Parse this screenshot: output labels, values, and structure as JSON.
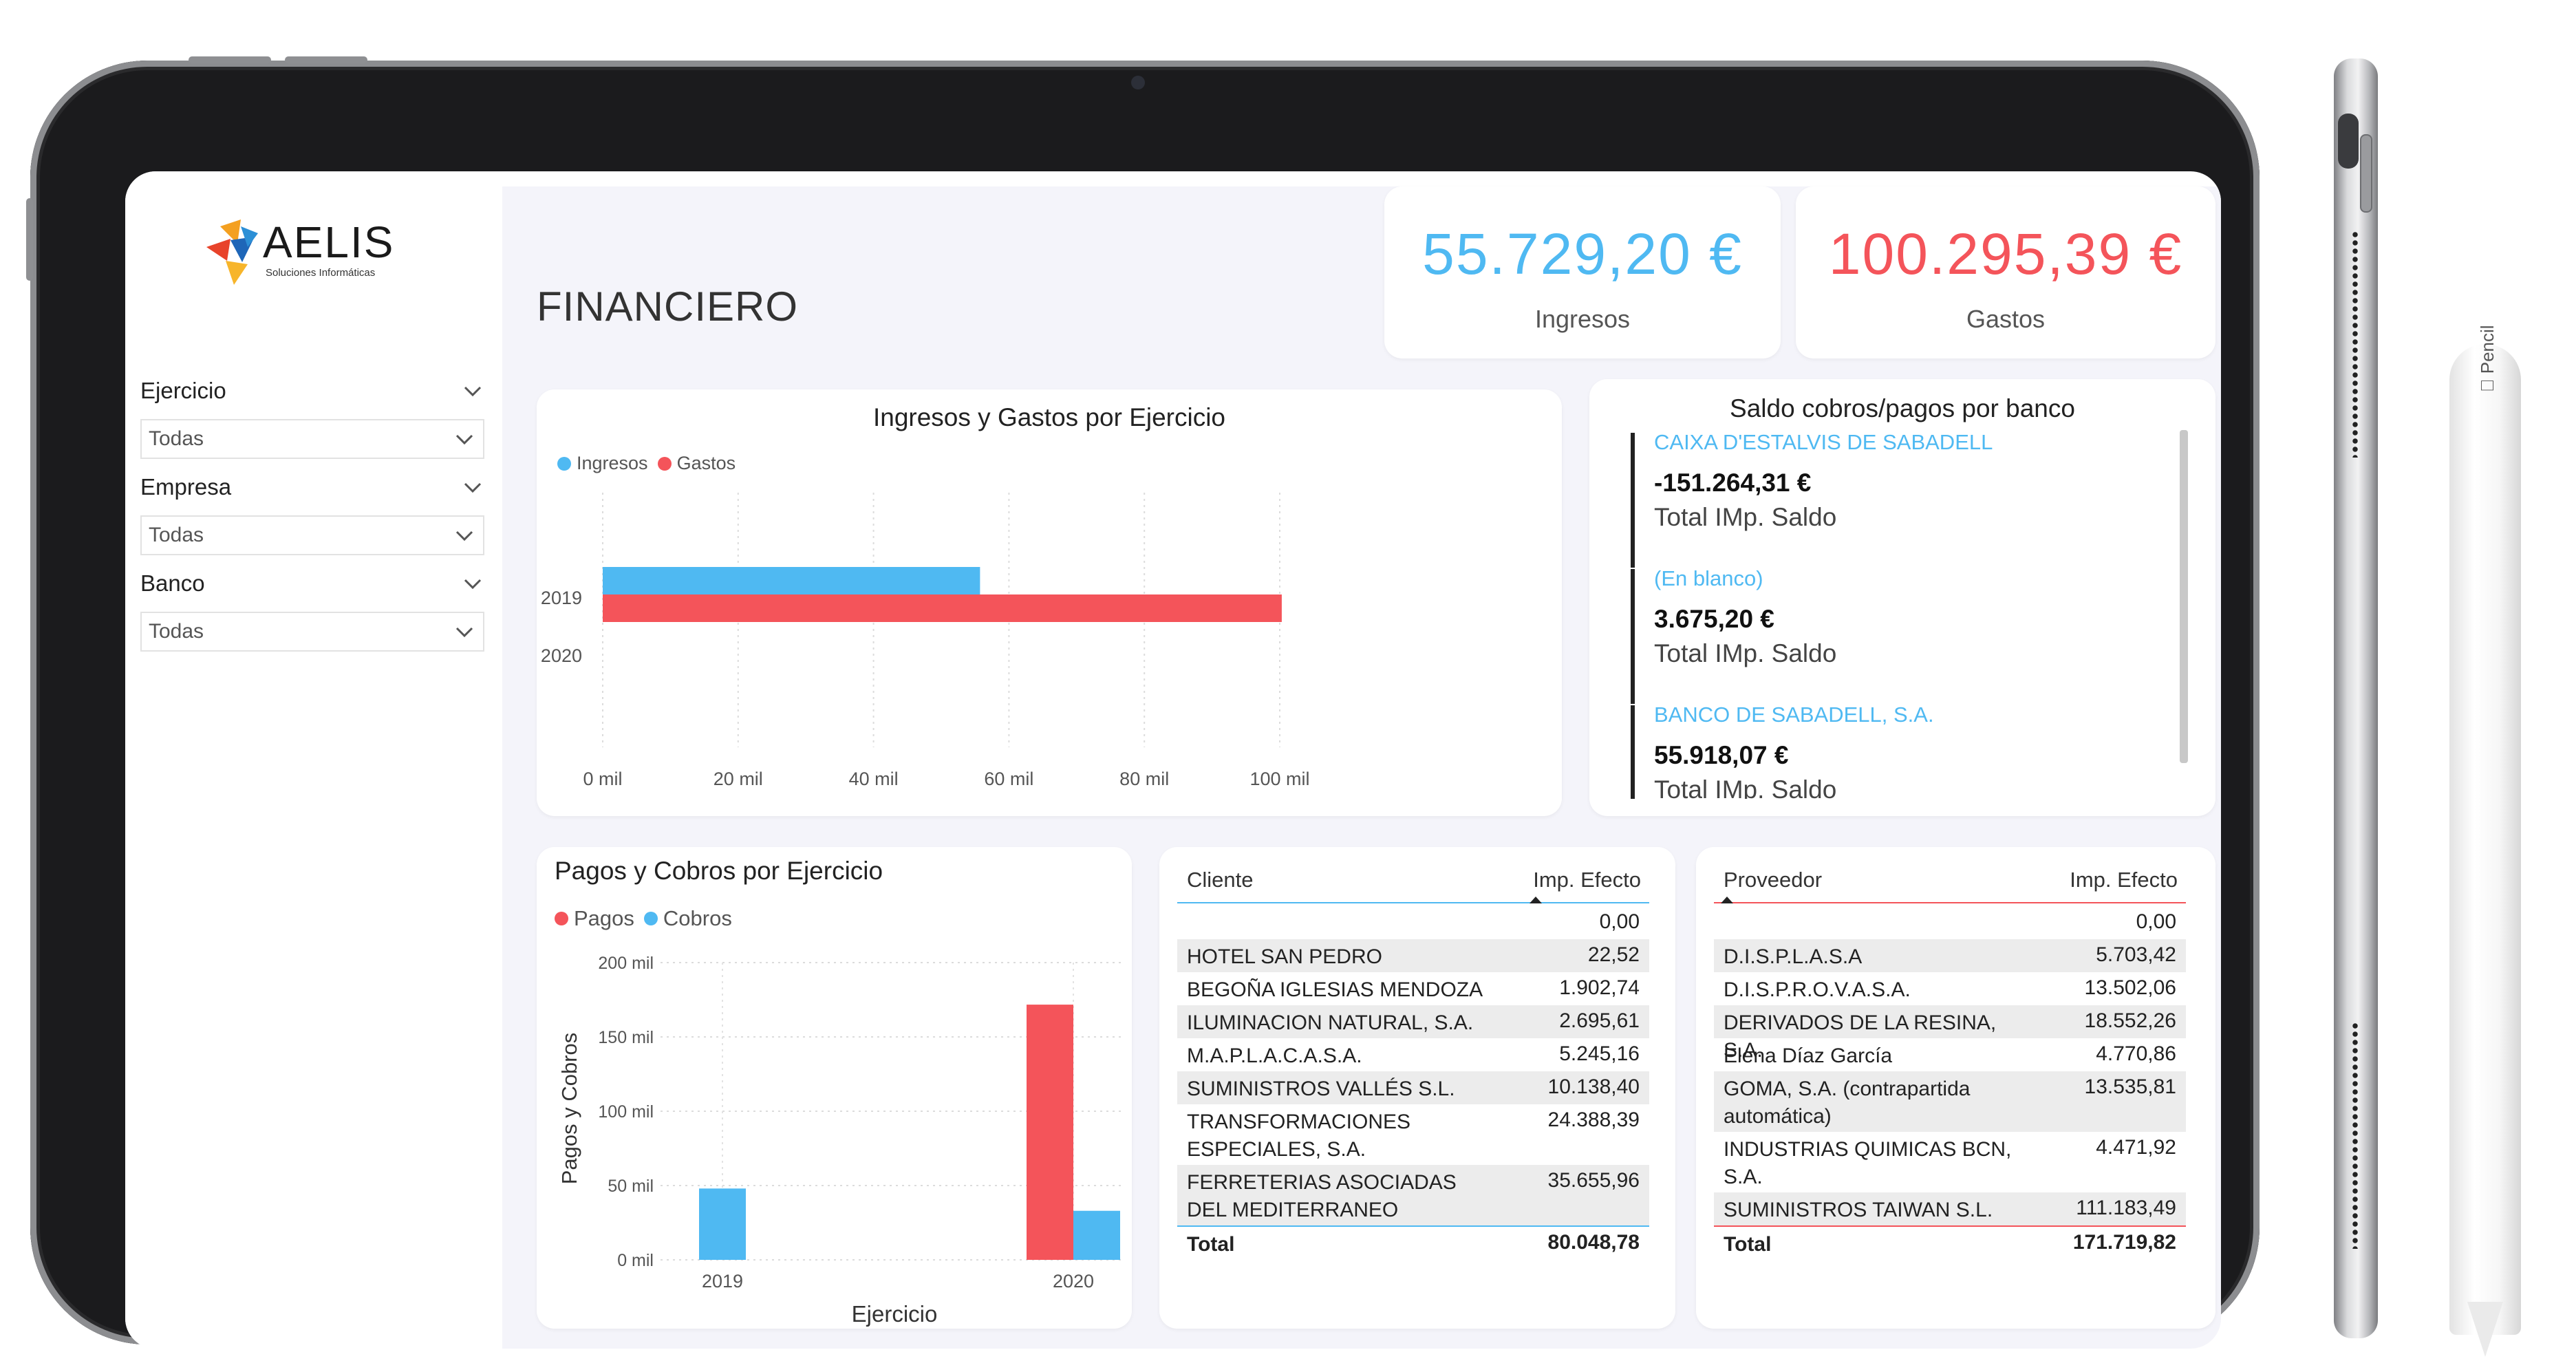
{
  "device": {
    "pencil_label": "Pencil"
  },
  "sidebar": {
    "logo": {
      "name": "AELIS",
      "tagline": "Soluciones Informáticas"
    },
    "filters": [
      {
        "label": "Ejercicio",
        "value": "Todas"
      },
      {
        "label": "Empresa",
        "value": "Todas"
      },
      {
        "label": "Banco",
        "value": "Todas"
      }
    ]
  },
  "header": {
    "title": "FINANCIERO"
  },
  "kpis": [
    {
      "value": "55.729,20 €",
      "label": "Ingresos",
      "color": "#4fb9f2"
    },
    {
      "value": "100.295,39 €",
      "label": "Gastos",
      "color": "#f4545a"
    }
  ],
  "colors": {
    "blue": "#4fb9f2",
    "red": "#f4545a"
  },
  "chart_data": [
    {
      "type": "bar",
      "orientation": "horizontal",
      "title": "Ingresos y Gastos por Ejercicio",
      "categories": [
        "2019",
        "2020"
      ],
      "series": [
        {
          "name": "Ingresos",
          "color": "#4fb9f2",
          "values": [
            55729.2,
            null
          ]
        },
        {
          "name": "Gastos",
          "color": "#f4545a",
          "values": [
            100295.39,
            null
          ]
        }
      ],
      "xlim": [
        0,
        100000
      ],
      "xticks": [
        "0 mil",
        "20 mil",
        "40 mil",
        "60 mil",
        "80 mil",
        "100 mil"
      ],
      "grid": true,
      "legend": "top-left"
    },
    {
      "type": "bar",
      "orientation": "vertical",
      "title": "Pagos y Cobros por Ejercicio",
      "categories": [
        "2019",
        "2020"
      ],
      "series": [
        {
          "name": "Pagos",
          "color": "#f4545a",
          "values": [
            0,
            171719.82
          ]
        },
        {
          "name": "Cobros",
          "color": "#4fb9f2",
          "values": [
            48000,
            33000
          ]
        }
      ],
      "xlabel": "Ejercicio",
      "ylabel": "Pagos y Cobros",
      "ylim": [
        0,
        200000
      ],
      "yticks": [
        "0 mil",
        "50 mil",
        "100 mil",
        "150 mil",
        "200 mil"
      ],
      "grid": true,
      "legend": "top-left"
    }
  ],
  "banks": {
    "title": "Saldo cobros/pagos por banco",
    "items": [
      {
        "name": "CAIXA D'ESTALVIS DE SABADELL",
        "value": "-151.264,31 €",
        "caption": "Total IMp. Saldo"
      },
      {
        "name": "(En blanco)",
        "value": "3.675,20 €",
        "caption": "Total IMp. Saldo"
      },
      {
        "name": "BANCO DE SABADELL, S.A.",
        "value": "55.918,07 €",
        "caption": "Total IMp. Saldo"
      }
    ]
  },
  "clientes_table": {
    "col1": "Cliente",
    "col2": "Imp. Efecto",
    "rows": [
      {
        "name": "",
        "value": "0,00"
      },
      {
        "name": "HOTEL SAN PEDRO",
        "value": "22,52"
      },
      {
        "name": "BEGOÑA IGLESIAS MENDOZA",
        "value": "1.902,74"
      },
      {
        "name": "ILUMINACION NATURAL, S.A.",
        "value": "2.695,61"
      },
      {
        "name": "M.A.P.L.A.C.A.S.A.",
        "value": "5.245,16"
      },
      {
        "name": "SUMINISTROS VALLÉS S.L.",
        "value": "10.138,40"
      },
      {
        "name": "TRANSFORMACIONES ESPECIALES, S.A.",
        "value": "24.388,39"
      },
      {
        "name": "FERRETERIAS ASOCIADAS DEL MEDITERRANEO",
        "value": "35.655,96"
      }
    ],
    "total_label": "Total",
    "total_value": "80.048,78"
  },
  "proveedores_table": {
    "col1": "Proveedor",
    "col2": "Imp. Efecto",
    "rows": [
      {
        "name": "",
        "value": "0,00"
      },
      {
        "name": "D.I.S.P.L.A.S.A",
        "value": "5.703,42"
      },
      {
        "name": "D.I.S.P.R.O.V.A.S.A.",
        "value": "13.502,06"
      },
      {
        "name": "DERIVADOS DE LA RESINA, S.A.",
        "value": "18.552,26"
      },
      {
        "name": "Elena Díaz García",
        "value": "4.770,86"
      },
      {
        "name": "GOMA, S.A. (contrapartida automática)",
        "value": "13.535,81"
      },
      {
        "name": "INDUSTRIAS QUIMICAS BCN, S.A.",
        "value": "4.471,92"
      },
      {
        "name": "SUMINISTROS TAIWAN S.L.",
        "value": "111.183,49"
      }
    ],
    "total_label": "Total",
    "total_value": "171.719,82"
  }
}
